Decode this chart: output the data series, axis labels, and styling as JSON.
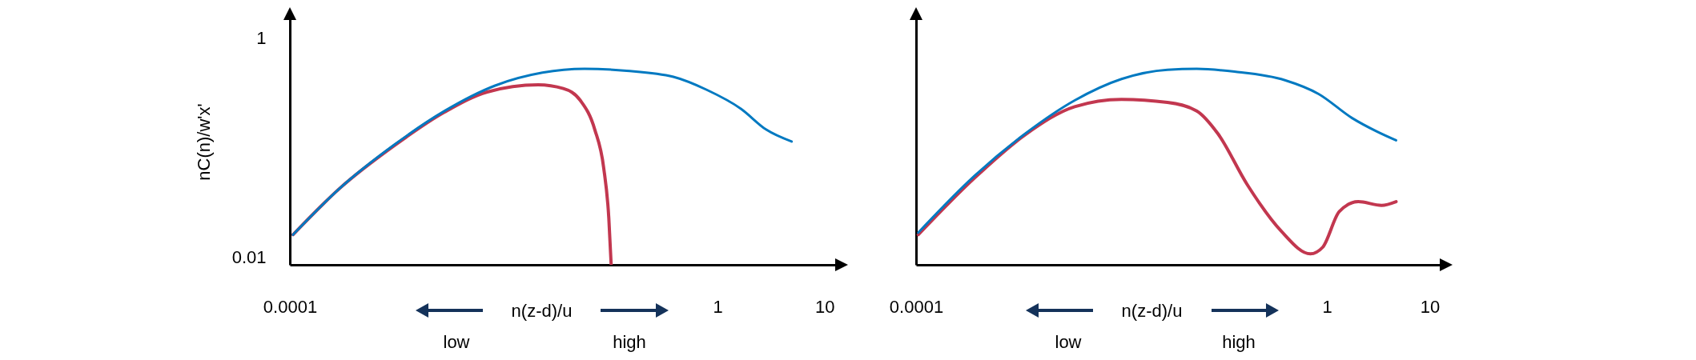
{
  "chart_data": [
    {
      "type": "line",
      "xlabel": "n(z-d)/u",
      "ylabel": "nC(n)/w'x'",
      "log": "xy",
      "xlim": [
        0.0001,
        13
      ],
      "ylim": [
        0.0085,
        1.5
      ],
      "xticks": [
        0.0001,
        1,
        10
      ],
      "yticks": [
        0.01,
        1
      ],
      "grid": false,
      "legend": false,
      "marker": "none",
      "line_style": "solid",
      "annotations": [
        "low",
        "high"
      ],
      "series": [
        {
          "color": "#0079c1",
          "x": [
            0.000107,
            0.00029,
            0.00095,
            0.0028,
            0.0083,
            0.023,
            0.057,
            0.141,
            0.385,
            0.79,
            1.65,
            2.85,
            4.92
          ],
          "values": [
            0.016,
            0.042,
            0.106,
            0.215,
            0.366,
            0.48,
            0.52,
            0.5,
            0.44,
            0.335,
            0.225,
            0.145,
            0.113
          ]
        },
        {
          "color": "#c2374f",
          "x": [
            0.000107,
            0.00029,
            0.00095,
            0.0028,
            0.007,
            0.021,
            0.036,
            0.052,
            0.071,
            0.086,
            0.096,
            0.101
          ],
          "values": [
            0.016,
            0.042,
            0.104,
            0.21,
            0.32,
            0.372,
            0.344,
            0.268,
            0.145,
            0.065,
            0.0227,
            0.0085
          ]
        }
      ]
    },
    {
      "type": "line",
      "xlabel": "n(z-d)/u",
      "log": "xy",
      "xlim": [
        0.0001,
        13
      ],
      "ylim": [
        0.0085,
        1.5
      ],
      "xticks": [
        0.0001,
        1,
        10
      ],
      "tick_labels": "x",
      "grid": false,
      "legend": false,
      "marker": "none",
      "line_style": "solid",
      "annotations": [
        "low",
        "high"
      ],
      "series": [
        {
          "color": "#0079c1",
          "x": [
            0.000105,
            0.00037,
            0.00115,
            0.0035,
            0.01,
            0.028,
            0.054,
            0.126,
            0.39,
            0.83,
            1.76,
            3.09,
            4.71
          ],
          "values": [
            0.0167,
            0.055,
            0.133,
            0.268,
            0.42,
            0.51,
            0.52,
            0.49,
            0.41,
            0.307,
            0.185,
            0.139,
            0.116
          ]
        },
        {
          "color": "#c2374f",
          "x": [
            0.000105,
            0.00037,
            0.00115,
            0.0035,
            0.01,
            0.028,
            0.054,
            0.087,
            0.167,
            0.356,
            0.69,
            0.91,
            1.32,
            2.02,
            3.4,
            4.71
          ],
          "values": [
            0.016,
            0.0525,
            0.13,
            0.235,
            0.274,
            0.257,
            0.215,
            0.133,
            0.046,
            0.0174,
            0.0107,
            0.0123,
            0.026,
            0.032,
            0.0296,
            0.032
          ]
        }
      ]
    }
  ]
}
